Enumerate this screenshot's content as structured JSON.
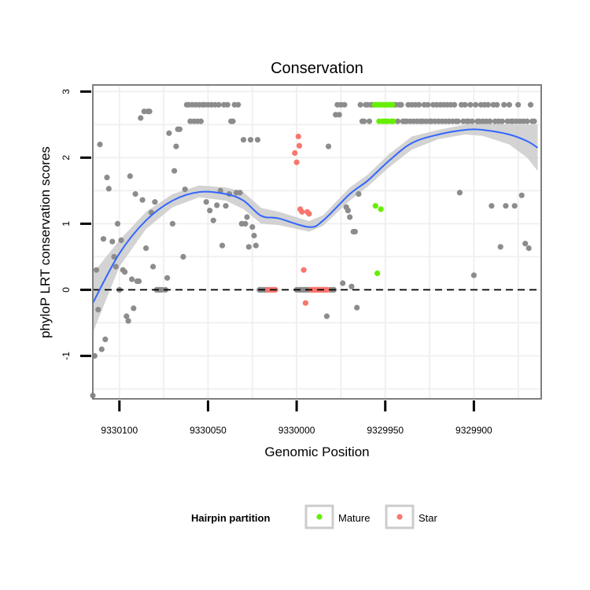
{
  "chart_data": {
    "type": "scatter",
    "title": "Conservation",
    "xlabel": "Genomic Position",
    "ylabel": "phyloP LRT conservation scores",
    "x_reversed": true,
    "xlim": [
      9330115,
      9329862
    ],
    "ylim": [
      -1.65,
      3.1
    ],
    "xticks": [
      9330100,
      9330050,
      9330000,
      9329950,
      9329900
    ],
    "xtick_labels": [
      "9330100",
      "9330050",
      "9330000",
      "9329950",
      "9329900"
    ],
    "yticks": [
      -1,
      0,
      1,
      2,
      3
    ],
    "ytick_labels": [
      "-1",
      "0",
      "1",
      "2",
      "3"
    ],
    "grid": true,
    "reference_line": {
      "y": 0,
      "style": "dashed"
    },
    "legend": {
      "title": "Hairpin partition",
      "position": "bottom",
      "entries": [
        {
          "label": "Mature",
          "color": "#66ee00"
        },
        {
          "label": "Star",
          "color": "#f8766d"
        }
      ]
    },
    "colors": {
      "other": "#8c8c8c",
      "Mature": "#66ee00",
      "Star": "#f8766d",
      "smooth": "#3366ff",
      "band": "#c8c8c8"
    },
    "series": [
      {
        "name": "Other",
        "points": [
          [
            9330115,
            -1.6
          ],
          [
            9330114,
            -1.0
          ],
          [
            9330113,
            0.3
          ],
          [
            9330112,
            -0.3
          ],
          [
            9330111,
            2.2
          ],
          [
            9330110,
            -0.9
          ],
          [
            9330109,
            0.77
          ],
          [
            9330108,
            -0.75
          ],
          [
            9330107,
            1.7
          ],
          [
            9330106,
            1.53
          ],
          [
            9330104,
            0.73
          ],
          [
            9330103,
            0.5
          ],
          [
            9330102,
            0.35
          ],
          [
            9330101,
            1.0
          ],
          [
            9330100,
            0.0
          ],
          [
            9330099,
            0.75
          ],
          [
            9330098,
            0.3
          ],
          [
            9330097,
            0.27
          ],
          [
            9330096,
            -0.4
          ],
          [
            9330095,
            -0.47
          ],
          [
            9330094,
            1.72
          ],
          [
            9330093,
            0.16
          ],
          [
            9330092,
            -0.28
          ],
          [
            9330091,
            1.45
          ],
          [
            9330090,
            0.13
          ],
          [
            9330089,
            0.13
          ],
          [
            9330088,
            2.6
          ],
          [
            9330087,
            1.36
          ],
          [
            9330086,
            2.7
          ],
          [
            9330085,
            0.63
          ],
          [
            9330084,
            2.7
          ],
          [
            9330083,
            2.7
          ],
          [
            9330082,
            1.17
          ],
          [
            9330081,
            0.35
          ],
          [
            9330080,
            1.33
          ],
          [
            9330079,
            0.0
          ],
          [
            9330078,
            0.0
          ],
          [
            9330077,
            0.0
          ],
          [
            9330076,
            0.0
          ],
          [
            9330074,
            0.0
          ],
          [
            9330073,
            0.18
          ],
          [
            9330072,
            2.37
          ],
          [
            9330070,
            1.0
          ],
          [
            9330069,
            1.8
          ],
          [
            9330068,
            2.17
          ],
          [
            9330067,
            2.43
          ],
          [
            9330066,
            2.43
          ],
          [
            9330064,
            0.5
          ],
          [
            9330063,
            1.52
          ],
          [
            9330062,
            2.8
          ],
          [
            9330061,
            2.8
          ],
          [
            9330060,
            2.55
          ],
          [
            9330059,
            2.8
          ],
          [
            9330058,
            2.55
          ],
          [
            9330057,
            2.8
          ],
          [
            9330056,
            2.55
          ],
          [
            9330055,
            2.8
          ],
          [
            9330054,
            2.55
          ],
          [
            9330053,
            2.8
          ],
          [
            9330052,
            2.8
          ],
          [
            9330051,
            1.33
          ],
          [
            9330050,
            2.8
          ],
          [
            9330049,
            1.2
          ],
          [
            9330048,
            2.8
          ],
          [
            9330047,
            1.05
          ],
          [
            9330046,
            2.8
          ],
          [
            9330045,
            1.28
          ],
          [
            9330044,
            2.8
          ],
          [
            9330043,
            1.5
          ],
          [
            9330042,
            0.67
          ],
          [
            9330041,
            2.8
          ],
          [
            9330040,
            1.27
          ],
          [
            9330039,
            2.8
          ],
          [
            9330038,
            1.45
          ],
          [
            9330037,
            2.55
          ],
          [
            9330036,
            2.55
          ],
          [
            9330035,
            2.8
          ],
          [
            9330034,
            1.47
          ],
          [
            9330033,
            2.8
          ],
          [
            9330032,
            1.47
          ],
          [
            9330031,
            1.0
          ],
          [
            9330030,
            2.27
          ],
          [
            9330029,
            1.0
          ],
          [
            9330028,
            1.1
          ],
          [
            9330027,
            0.65
          ],
          [
            9330026,
            2.27
          ],
          [
            9330025,
            0.95
          ],
          [
            9330024,
            0.82
          ],
          [
            9330023,
            0.67
          ],
          [
            9330022,
            2.27
          ],
          [
            9330021,
            0.0
          ],
          [
            9330020,
            0.0
          ],
          [
            9330019,
            0.0
          ],
          [
            9330018,
            0.0
          ],
          [
            9330017,
            0.0
          ],
          [
            9330000,
            0.0
          ],
          [
            9329999,
            0.0
          ],
          [
            9329998,
            0.0
          ],
          [
            9329997,
            0.0
          ],
          [
            9329996,
            0.0
          ],
          [
            9329995,
            0.0
          ],
          [
            9329994,
            0.0
          ],
          [
            9329993,
            0.0
          ],
          [
            9329992,
            0.0
          ],
          [
            9329991,
            0.0
          ],
          [
            9329990,
            0.0
          ],
          [
            9329989,
            0.0
          ],
          [
            9329988,
            0.0
          ],
          [
            9329987,
            0.0
          ],
          [
            9329986,
            0.0
          ],
          [
            9329985,
            0.0
          ],
          [
            9329984,
            0.0
          ],
          [
            9329983,
            -0.4
          ],
          [
            9329982,
            2.17
          ],
          [
            9329981,
            0.0
          ],
          [
            9329980,
            0.0
          ],
          [
            9329979,
            0.0
          ],
          [
            9329978,
            2.65
          ],
          [
            9329977,
            2.8
          ],
          [
            9329976,
            2.65
          ],
          [
            9329975,
            2.8
          ],
          [
            9329974,
            0.1
          ],
          [
            9329973,
            2.8
          ],
          [
            9329972,
            1.25
          ],
          [
            9329971,
            1.2
          ],
          [
            9329970,
            1.1
          ],
          [
            9329969,
            0.05
          ],
          [
            9329968,
            0.88
          ],
          [
            9329967,
            0.88
          ],
          [
            9329966,
            -0.27
          ],
          [
            9329965,
            1.45
          ],
          [
            9329964,
            2.8
          ],
          [
            9329963,
            2.55
          ],
          [
            9329962,
            2.55
          ],
          [
            9329961,
            2.8
          ],
          [
            9329960,
            2.8
          ],
          [
            9329959,
            2.55
          ],
          [
            9329958,
            2.8
          ],
          [
            9329957,
            2.8
          ],
          [
            9329945,
            2.8
          ],
          [
            9329944,
            2.8
          ],
          [
            9329943,
            2.55
          ],
          [
            9329942,
            2.8
          ],
          [
            9329941,
            2.8
          ],
          [
            9329940,
            2.55
          ],
          [
            9329939,
            2.55
          ],
          [
            9329938,
            2.55
          ],
          [
            9329937,
            2.8
          ],
          [
            9329936,
            2.55
          ],
          [
            9329935,
            2.8
          ],
          [
            9329934,
            2.55
          ],
          [
            9329933,
            2.8
          ],
          [
            9329932,
            2.55
          ],
          [
            9329931,
            2.8
          ],
          [
            9329930,
            2.55
          ],
          [
            9329929,
            2.55
          ],
          [
            9329928,
            2.8
          ],
          [
            9329927,
            2.55
          ],
          [
            9329926,
            2.8
          ],
          [
            9329925,
            2.55
          ],
          [
            9329924,
            2.55
          ],
          [
            9329923,
            2.8
          ],
          [
            9329922,
            2.55
          ],
          [
            9329921,
            2.8
          ],
          [
            9329920,
            2.55
          ],
          [
            9329919,
            2.8
          ],
          [
            9329918,
            2.55
          ],
          [
            9329917,
            2.8
          ],
          [
            9329916,
            2.55
          ],
          [
            9329915,
            2.8
          ],
          [
            9329914,
            2.55
          ],
          [
            9329913,
            2.8
          ],
          [
            9329912,
            2.55
          ],
          [
            9329911,
            2.8
          ],
          [
            9329910,
            2.55
          ],
          [
            9329909,
            2.55
          ],
          [
            9329908,
            1.47
          ],
          [
            9329907,
            2.8
          ],
          [
            9329906,
            2.55
          ],
          [
            9329905,
            2.8
          ],
          [
            9329904,
            2.55
          ],
          [
            9329903,
            2.55
          ],
          [
            9329902,
            2.8
          ],
          [
            9329901,
            2.55
          ],
          [
            9329900,
            0.22
          ],
          [
            9329899,
            2.8
          ],
          [
            9329898,
            2.55
          ],
          [
            9329897,
            2.55
          ],
          [
            9329896,
            2.8
          ],
          [
            9329895,
            2.55
          ],
          [
            9329894,
            2.8
          ],
          [
            9329893,
            2.55
          ],
          [
            9329892,
            2.8
          ],
          [
            9329891,
            2.55
          ],
          [
            9329890,
            1.27
          ],
          [
            9329889,
            2.8
          ],
          [
            9329888,
            2.55
          ],
          [
            9329887,
            2.8
          ],
          [
            9329886,
            2.55
          ],
          [
            9329885,
            0.65
          ],
          [
            9329884,
            2.55
          ],
          [
            9329883,
            2.8
          ],
          [
            9329882,
            1.27
          ],
          [
            9329881,
            2.55
          ],
          [
            9329880,
            2.8
          ],
          [
            9329879,
            2.55
          ],
          [
            9329878,
            2.55
          ],
          [
            9329877,
            1.27
          ],
          [
            9329876,
            2.55
          ],
          [
            9329875,
            2.8
          ],
          [
            9329874,
            2.55
          ],
          [
            9329873,
            1.43
          ],
          [
            9329872,
            2.55
          ],
          [
            9329871,
            0.7
          ],
          [
            9329870,
            2.55
          ],
          [
            9329869,
            0.63
          ],
          [
            9329868,
            2.8
          ],
          [
            9329867,
            2.55
          ],
          [
            9329866,
            2.55
          ]
        ]
      },
      {
        "name": "Mature",
        "points": [
          [
            9329956,
            2.8
          ],
          [
            9329955,
            2.8
          ],
          [
            9329954,
            2.8
          ],
          [
            9329953,
            2.8
          ],
          [
            9329952,
            2.8
          ],
          [
            9329951,
            2.8
          ],
          [
            9329950,
            2.8
          ],
          [
            9329949,
            2.8
          ],
          [
            9329948,
            2.8
          ],
          [
            9329947,
            2.8
          ],
          [
            9329946,
            2.8
          ],
          [
            9329955.5,
            1.27
          ],
          [
            9329954.5,
            0.25
          ],
          [
            9329953.5,
            2.55
          ],
          [
            9329952.5,
            1.22
          ],
          [
            9329951.5,
            2.55
          ],
          [
            9329950.5,
            2.55
          ],
          [
            9329949.5,
            2.55
          ],
          [
            9329948.5,
            2.55
          ],
          [
            9329946.5,
            2.55
          ],
          [
            9329945.5,
            2.55
          ]
        ]
      },
      {
        "name": "Star",
        "points": [
          [
            9330016,
            0.0
          ],
          [
            9330015,
            0.0
          ],
          [
            9330014,
            0.0
          ],
          [
            9330013,
            0.0
          ],
          [
            9330012,
            0.0
          ],
          [
            9330001,
            2.07
          ],
          [
            9330000,
            1.93
          ],
          [
            9329999,
            2.32
          ],
          [
            9329998.5,
            2.18
          ],
          [
            9329998,
            1.22
          ],
          [
            9329997,
            1.18
          ],
          [
            9329996,
            0.3
          ],
          [
            9329995,
            -0.2
          ],
          [
            9329994,
            1.18
          ],
          [
            9329993,
            1.15
          ],
          [
            9329992,
            0.0
          ],
          [
            9329991,
            0.0
          ],
          [
            9329990,
            0.0
          ],
          [
            9329989,
            0.0
          ],
          [
            9329988,
            0.0
          ],
          [
            9329987,
            0.0
          ],
          [
            9329986,
            0.0
          ],
          [
            9329985,
            0.0
          ],
          [
            9329984,
            0.0
          ],
          [
            9329983.5,
            0.0
          ],
          [
            9329982.5,
            0.0
          ]
        ]
      }
    ],
    "smooth": {
      "method": "loess",
      "x": [
        9330115,
        9330100,
        9330085,
        9330070,
        9330055,
        9330040,
        9330030,
        9330020,
        9330010,
        9329993,
        9329985,
        9329970,
        9329960,
        9329948,
        9329935,
        9329920,
        9329905,
        9329895,
        9329880,
        9329870,
        9329864
      ],
      "y": [
        -0.2,
        0.55,
        1.05,
        1.35,
        1.48,
        1.45,
        1.35,
        1.12,
        1.08,
        0.95,
        1.05,
        1.45,
        1.65,
        1.95,
        2.22,
        2.35,
        2.42,
        2.42,
        2.35,
        2.25,
        2.15
      ],
      "se_lower": [
        -0.65,
        0.35,
        0.92,
        1.25,
        1.4,
        1.35,
        1.22,
        1.0,
        0.98,
        0.88,
        0.97,
        1.35,
        1.56,
        1.85,
        2.12,
        2.28,
        2.35,
        2.33,
        2.2,
        2.0,
        1.8
      ],
      "se_upper": [
        0.25,
        0.75,
        1.18,
        1.45,
        1.58,
        1.55,
        1.48,
        1.24,
        1.18,
        1.04,
        1.13,
        1.55,
        1.74,
        2.05,
        2.32,
        2.42,
        2.5,
        2.52,
        2.5,
        2.5,
        2.5
      ]
    }
  }
}
